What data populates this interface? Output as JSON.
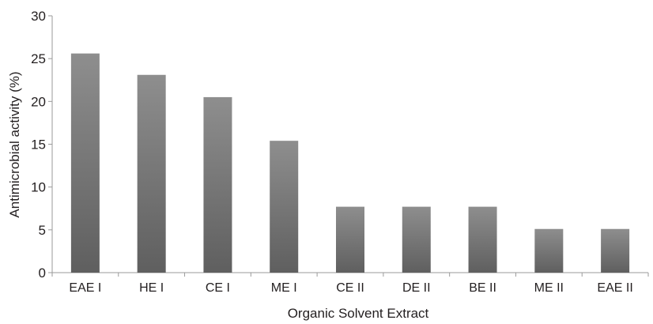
{
  "chart_data": {
    "type": "bar",
    "title": "",
    "xlabel": "Organic Solvent Extract",
    "ylabel": "Antimicrobial activity (%)",
    "ylim": [
      0,
      30
    ],
    "yticks": [
      "0",
      "5",
      "10",
      "15",
      "20",
      "25",
      "30"
    ],
    "categories": [
      "EAE I",
      "HE I",
      "CE I",
      "ME I",
      "CE II",
      "DE II",
      "BE II",
      "ME II",
      "EAE II"
    ],
    "values": [
      25.6,
      23.1,
      20.5,
      15.4,
      7.7,
      7.7,
      7.7,
      5.1,
      5.1
    ],
    "grid": false,
    "legend": "none",
    "colors": {
      "bar_light": "#8e8e8e",
      "bar_dark": "#5f5f5f",
      "axis": "#9a9a9a",
      "text": "#231f20"
    }
  }
}
